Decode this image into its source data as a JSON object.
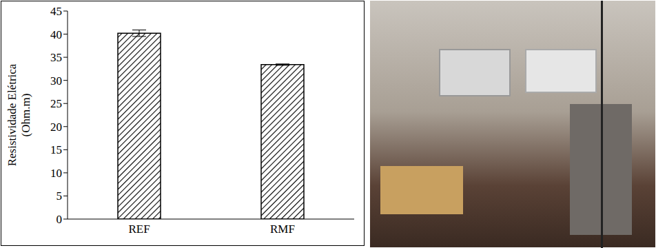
{
  "chart_data": {
    "type": "bar",
    "categories": [
      "REF",
      "RMF"
    ],
    "values": [
      40.2,
      33.4
    ],
    "errors": [
      0.7,
      0.15
    ],
    "color": "#000000",
    "y_label": "Resistividade Elétrica (Ohm.m)",
    "ylim": [
      0,
      45
    ],
    "yticks": [
      0,
      5,
      10,
      15,
      20,
      25,
      30,
      35,
      40,
      45
    ],
    "grid": false
  }
}
